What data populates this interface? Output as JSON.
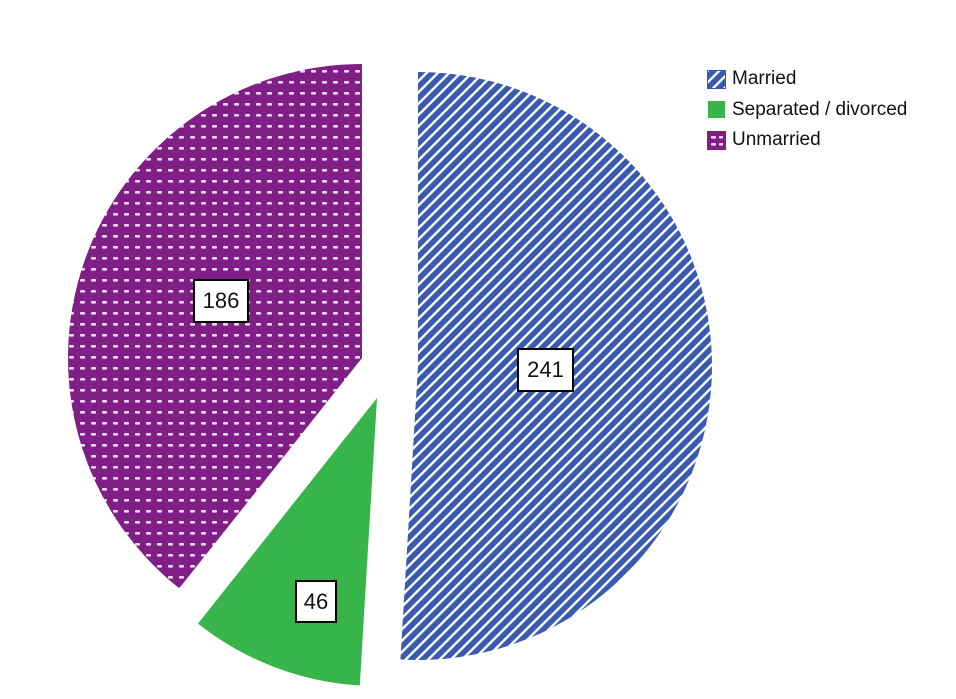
{
  "chart_data": {
    "type": "pie",
    "title": "",
    "categories": [
      "Married",
      "Separated / divorced",
      "Unmarried"
    ],
    "values": [
      241,
      46,
      186
    ],
    "colors": [
      "#3a5ab0",
      "#38b54a",
      "#7f1f86"
    ],
    "patterns": [
      "diagonal-stripes",
      "solid",
      "dots"
    ],
    "exploded": true,
    "legend_position": "top-right",
    "data_labels": [
      "241",
      "46",
      "186"
    ]
  },
  "legend": {
    "items": [
      {
        "label": "Married"
      },
      {
        "label": "Separated / divorced"
      },
      {
        "label": "Unmarried"
      }
    ]
  }
}
